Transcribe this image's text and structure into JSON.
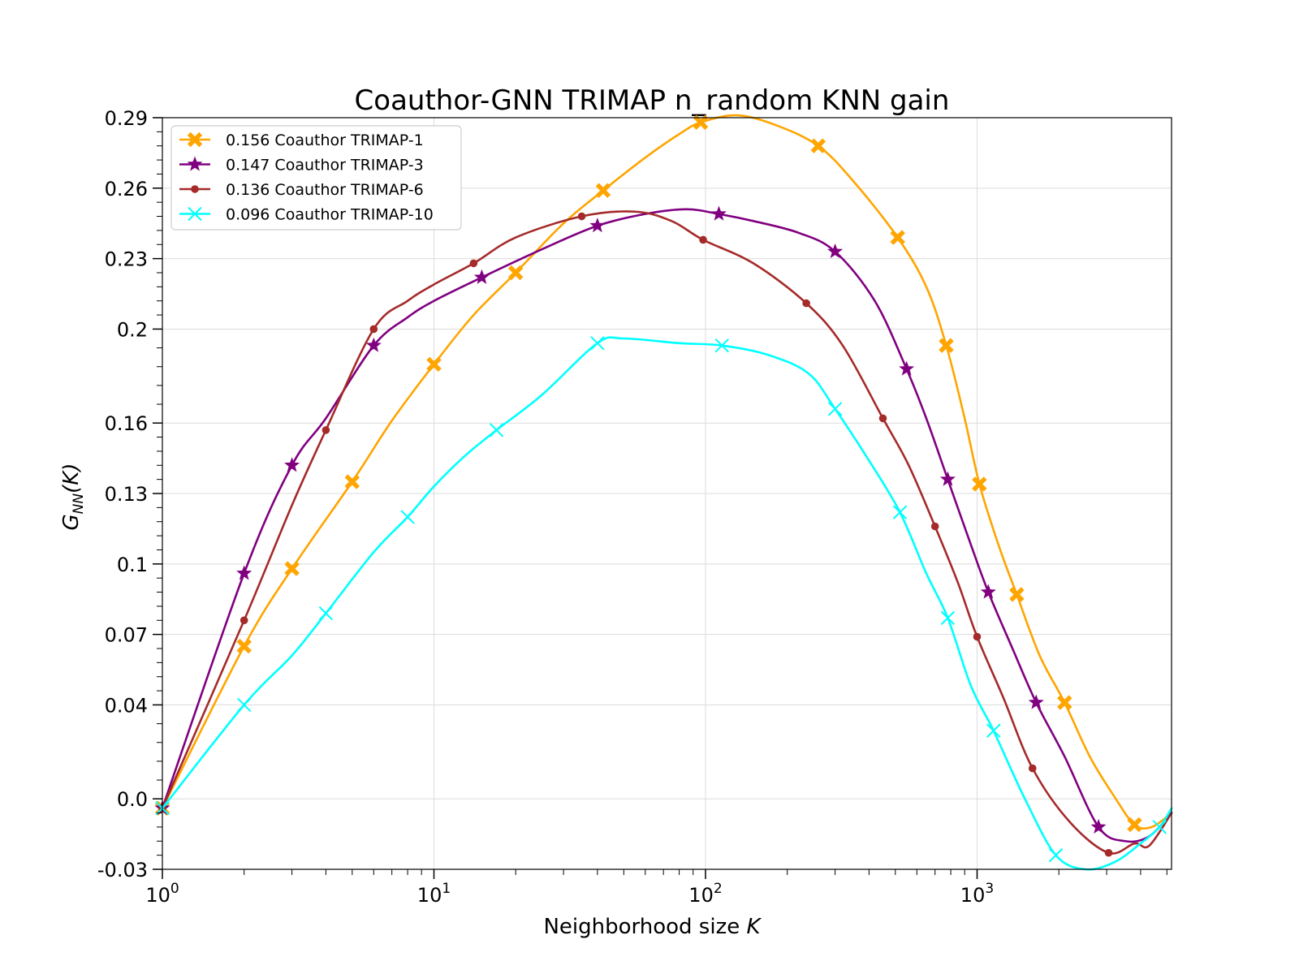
{
  "chart_data": {
    "type": "line",
    "title": "Coauthor-GNN TRIMAP n_random KNN gain",
    "xlabel": {
      "prefix": "Neighborhood size ",
      "var": "K"
    },
    "ylabel": {
      "main": "G",
      "sub": "NN",
      "suffix": "(K)"
    },
    "x_scale": "log",
    "xlim": [
      1,
      5200
    ],
    "ylim": [
      -0.03,
      0.29
    ],
    "x_ticks": [
      {
        "value": 1,
        "base": "10",
        "exp": "0"
      },
      {
        "value": 10,
        "base": "10",
        "exp": "1"
      },
      {
        "value": 100,
        "base": "10",
        "exp": "2"
      },
      {
        "value": 1000,
        "base": "10",
        "exp": "3"
      }
    ],
    "y_ticks": [
      {
        "value": 0.29,
        "label": "0.29"
      },
      {
        "value": 0.26,
        "label": "0.26"
      },
      {
        "value": 0.23,
        "label": "0.23"
      },
      {
        "value": 0.2,
        "label": "0.2"
      },
      {
        "value": 0.16,
        "label": "0.16"
      },
      {
        "value": 0.13,
        "label": "0.13"
      },
      {
        "value": 0.1,
        "label": "0.1"
      },
      {
        "value": 0.07,
        "label": "0.07"
      },
      {
        "value": 0.04,
        "label": "0.04"
      },
      {
        "value": 0.0,
        "label": "0.0"
      },
      {
        "value": -0.03,
        "label": "-0.03"
      }
    ],
    "grid": true,
    "legend_position": "top-left",
    "series": [
      {
        "name": "0.156 Coauthor TRIMAP-1",
        "color": "#FFA500",
        "marker": "X",
        "points": [
          [
            1,
            -0.004
          ],
          [
            2,
            0.065
          ],
          [
            3,
            0.098
          ],
          [
            5,
            0.135
          ],
          [
            7,
            0.161
          ],
          [
            10,
            0.185
          ],
          [
            14,
            0.206
          ],
          [
            20,
            0.224
          ],
          [
            30,
            0.245
          ],
          [
            42,
            0.259
          ],
          [
            60,
            0.273
          ],
          [
            80,
            0.283
          ],
          [
            96,
            0.288
          ],
          [
            130,
            0.291
          ],
          [
            180,
            0.287
          ],
          [
            260,
            0.278
          ],
          [
            350,
            0.263
          ],
          [
            510,
            0.239
          ],
          [
            650,
            0.218
          ],
          [
            770,
            0.193
          ],
          [
            900,
            0.162
          ],
          [
            1020,
            0.134
          ],
          [
            1200,
            0.108
          ],
          [
            1400,
            0.087
          ],
          [
            1700,
            0.061
          ],
          [
            2100,
            0.041
          ],
          [
            2600,
            0.018
          ],
          [
            3200,
            0.001
          ],
          [
            3800,
            -0.011
          ],
          [
            4400,
            -0.012
          ],
          [
            5200,
            -0.006
          ]
        ],
        "markers": [
          [
            1,
            -0.004
          ],
          [
            2,
            0.065
          ],
          [
            3,
            0.098
          ],
          [
            5,
            0.135
          ],
          [
            10,
            0.185
          ],
          [
            20,
            0.224
          ],
          [
            42,
            0.259
          ],
          [
            96,
            0.288
          ],
          [
            260,
            0.278
          ],
          [
            510,
            0.239
          ],
          [
            770,
            0.193
          ],
          [
            1020,
            0.134
          ],
          [
            1400,
            0.087
          ],
          [
            2100,
            0.041
          ],
          [
            3800,
            -0.011
          ]
        ]
      },
      {
        "name": "0.147 Coauthor TRIMAP-3",
        "color": "#800080",
        "marker": "star",
        "points": [
          [
            1,
            -0.004
          ],
          [
            2,
            0.096
          ],
          [
            3,
            0.142
          ],
          [
            4,
            0.162
          ],
          [
            6,
            0.193
          ],
          [
            8,
            0.205
          ],
          [
            10,
            0.212
          ],
          [
            15,
            0.222
          ],
          [
            25,
            0.234
          ],
          [
            40,
            0.244
          ],
          [
            60,
            0.249
          ],
          [
            85,
            0.251
          ],
          [
            112,
            0.249
          ],
          [
            150,
            0.246
          ],
          [
            220,
            0.241
          ],
          [
            300,
            0.233
          ],
          [
            420,
            0.212
          ],
          [
            550,
            0.183
          ],
          [
            650,
            0.162
          ],
          [
            780,
            0.136
          ],
          [
            950,
            0.108
          ],
          [
            1100,
            0.088
          ],
          [
            1350,
            0.064
          ],
          [
            1650,
            0.041
          ],
          [
            2100,
            0.018
          ],
          [
            2800,
            -0.012
          ],
          [
            3500,
            -0.018
          ],
          [
            4300,
            -0.016
          ],
          [
            5200,
            -0.006
          ]
        ],
        "markers": [
          [
            1,
            -0.004
          ],
          [
            2,
            0.096
          ],
          [
            3,
            0.142
          ],
          [
            6,
            0.193
          ],
          [
            15,
            0.222
          ],
          [
            40,
            0.244
          ],
          [
            112,
            0.249
          ],
          [
            300,
            0.233
          ],
          [
            550,
            0.183
          ],
          [
            780,
            0.136
          ],
          [
            1100,
            0.088
          ],
          [
            1650,
            0.041
          ],
          [
            2800,
            -0.012
          ]
        ]
      },
      {
        "name": "0.136 Coauthor TRIMAP-6",
        "color": "#A52A2A",
        "marker": "dot",
        "points": [
          [
            1,
            -0.004
          ],
          [
            2,
            0.076
          ],
          [
            3,
            0.125
          ],
          [
            4,
            0.157
          ],
          [
            6,
            0.2
          ],
          [
            8,
            0.212
          ],
          [
            10,
            0.219
          ],
          [
            14,
            0.228
          ],
          [
            20,
            0.239
          ],
          [
            35,
            0.248
          ],
          [
            55,
            0.25
          ],
          [
            75,
            0.246
          ],
          [
            98,
            0.238
          ],
          [
            150,
            0.228
          ],
          [
            235,
            0.211
          ],
          [
            320,
            0.193
          ],
          [
            450,
            0.162
          ],
          [
            560,
            0.142
          ],
          [
            700,
            0.116
          ],
          [
            850,
            0.092
          ],
          [
            1000,
            0.069
          ],
          [
            1250,
            0.043
          ],
          [
            1600,
            0.013
          ],
          [
            2200,
            -0.01
          ],
          [
            3050,
            -0.023
          ],
          [
            3800,
            -0.019
          ],
          [
            4300,
            -0.02
          ],
          [
            5200,
            -0.006
          ]
        ],
        "markers": [
          [
            1,
            -0.004
          ],
          [
            2,
            0.076
          ],
          [
            4,
            0.157
          ],
          [
            6,
            0.2
          ],
          [
            14,
            0.228
          ],
          [
            35,
            0.248
          ],
          [
            98,
            0.238
          ],
          [
            235,
            0.211
          ],
          [
            450,
            0.162
          ],
          [
            700,
            0.116
          ],
          [
            1000,
            0.069
          ],
          [
            1600,
            0.013
          ],
          [
            3050,
            -0.023
          ]
        ]
      },
      {
        "name": "0.096 Coauthor TRIMAP-10",
        "color": "#00FFFF",
        "marker": "x",
        "points": [
          [
            1,
            -0.004
          ],
          [
            2,
            0.04
          ],
          [
            3,
            0.061
          ],
          [
            4,
            0.079
          ],
          [
            6,
            0.105
          ],
          [
            8,
            0.12
          ],
          [
            10,
            0.133
          ],
          [
            13,
            0.146
          ],
          [
            17,
            0.157
          ],
          [
            25,
            0.172
          ],
          [
            40,
            0.194
          ],
          [
            50,
            0.196
          ],
          [
            80,
            0.194
          ],
          [
            115,
            0.193
          ],
          [
            170,
            0.189
          ],
          [
            240,
            0.181
          ],
          [
            300,
            0.166
          ],
          [
            400,
            0.144
          ],
          [
            520,
            0.122
          ],
          [
            650,
            0.096
          ],
          [
            780,
            0.077
          ],
          [
            950,
            0.048
          ],
          [
            1150,
            0.029
          ],
          [
            1500,
            0.0
          ],
          [
            1950,
            -0.024
          ],
          [
            2500,
            -0.03
          ],
          [
            3200,
            -0.027
          ],
          [
            4000,
            -0.019
          ],
          [
            4700,
            -0.012
          ],
          [
            5200,
            -0.004
          ]
        ],
        "markers": [
          [
            1,
            -0.004
          ],
          [
            2,
            0.04
          ],
          [
            4,
            0.079
          ],
          [
            8,
            0.12
          ],
          [
            17,
            0.157
          ],
          [
            40,
            0.194
          ],
          [
            115,
            0.193
          ],
          [
            300,
            0.166
          ],
          [
            520,
            0.122
          ],
          [
            780,
            0.077
          ],
          [
            1150,
            0.029
          ],
          [
            1950,
            -0.024
          ],
          [
            4700,
            -0.012
          ]
        ]
      }
    ]
  }
}
